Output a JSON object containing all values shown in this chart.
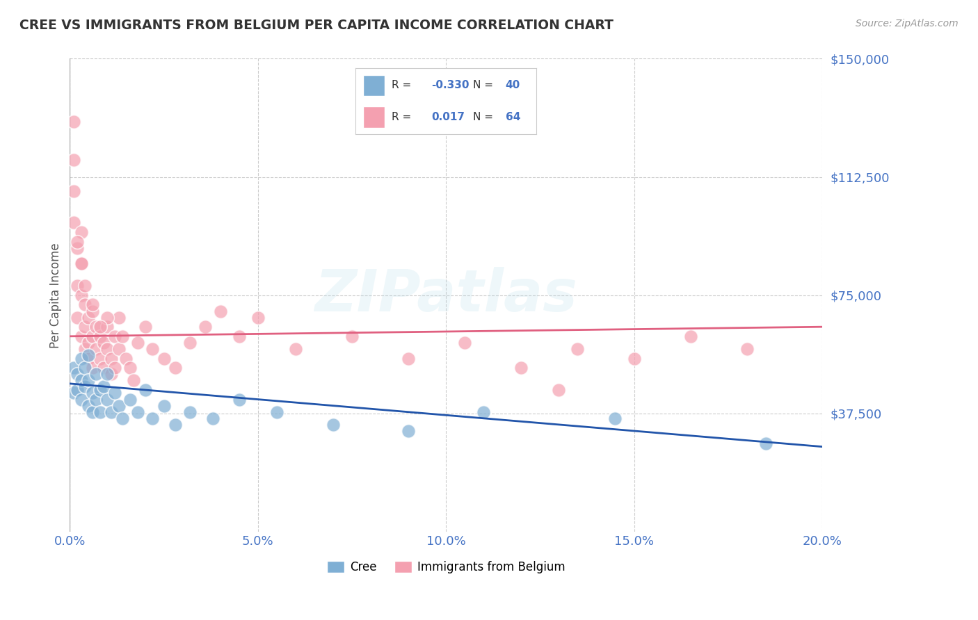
{
  "title": "CREE VS IMMIGRANTS FROM BELGIUM PER CAPITA INCOME CORRELATION CHART",
  "source": "Source: ZipAtlas.com",
  "ylabel": "Per Capita Income",
  "xlim": [
    0.0,
    0.2
  ],
  "ylim": [
    0,
    150000
  ],
  "yticks": [
    0,
    37500,
    75000,
    112500,
    150000
  ],
  "ytick_labels": [
    "",
    "$37,500",
    "$75,000",
    "$112,500",
    "$150,000"
  ],
  "xticks": [
    0.0,
    0.05,
    0.1,
    0.15,
    0.2
  ],
  "xtick_labels": [
    "0.0%",
    "5.0%",
    "10.0%",
    "15.0%",
    "20.0%"
  ],
  "background_color": "#ffffff",
  "grid_color": "#cccccc",
  "title_color": "#333333",
  "axis_label_color": "#555555",
  "tick_label_color": "#4472c4",
  "watermark_text": "ZIPatlas",
  "cree_color": "#7fafd4",
  "belgium_color": "#f4a0b0",
  "cree_line_color": "#2255aa",
  "belgium_line_color": "#e06080",
  "legend_R1": "-0.330",
  "legend_N1": "40",
  "legend_R2": "0.017",
  "legend_N2": "64",
  "cree_line_x0": 0.0,
  "cree_line_y0": 47000,
  "cree_line_x1": 0.2,
  "cree_line_y1": 27000,
  "belgium_line_x0": 0.0,
  "belgium_line_y0": 62000,
  "belgium_line_x1": 0.2,
  "belgium_line_y1": 65000,
  "cree_x": [
    0.001,
    0.001,
    0.002,
    0.002,
    0.003,
    0.003,
    0.003,
    0.004,
    0.004,
    0.005,
    0.005,
    0.005,
    0.006,
    0.006,
    0.007,
    0.007,
    0.008,
    0.008,
    0.009,
    0.01,
    0.01,
    0.011,
    0.012,
    0.013,
    0.014,
    0.016,
    0.018,
    0.02,
    0.022,
    0.025,
    0.028,
    0.032,
    0.038,
    0.045,
    0.055,
    0.07,
    0.09,
    0.11,
    0.145,
    0.185
  ],
  "cree_y": [
    52000,
    44000,
    50000,
    45000,
    48000,
    42000,
    55000,
    46000,
    52000,
    40000,
    48000,
    56000,
    38000,
    44000,
    42000,
    50000,
    45000,
    38000,
    46000,
    42000,
    50000,
    38000,
    44000,
    40000,
    36000,
    42000,
    38000,
    45000,
    36000,
    40000,
    34000,
    38000,
    36000,
    42000,
    38000,
    34000,
    32000,
    38000,
    36000,
    28000
  ],
  "belgium_x": [
    0.001,
    0.001,
    0.001,
    0.001,
    0.002,
    0.002,
    0.002,
    0.003,
    0.003,
    0.003,
    0.003,
    0.004,
    0.004,
    0.004,
    0.005,
    0.005,
    0.005,
    0.006,
    0.006,
    0.006,
    0.007,
    0.007,
    0.008,
    0.008,
    0.009,
    0.009,
    0.01,
    0.01,
    0.011,
    0.011,
    0.012,
    0.012,
    0.013,
    0.013,
    0.014,
    0.015,
    0.016,
    0.017,
    0.018,
    0.02,
    0.022,
    0.025,
    0.028,
    0.032,
    0.036,
    0.04,
    0.045,
    0.05,
    0.06,
    0.075,
    0.09,
    0.105,
    0.12,
    0.135,
    0.15,
    0.165,
    0.18,
    0.01,
    0.008,
    0.006,
    0.004,
    0.003,
    0.002,
    0.13
  ],
  "belgium_y": [
    130000,
    118000,
    108000,
    98000,
    90000,
    78000,
    68000,
    62000,
    75000,
    85000,
    95000,
    72000,
    65000,
    58000,
    60000,
    68000,
    55000,
    70000,
    62000,
    52000,
    65000,
    58000,
    62000,
    55000,
    60000,
    52000,
    58000,
    65000,
    55000,
    50000,
    62000,
    52000,
    58000,
    68000,
    62000,
    55000,
    52000,
    48000,
    60000,
    65000,
    58000,
    55000,
    52000,
    60000,
    65000,
    70000,
    62000,
    68000,
    58000,
    62000,
    55000,
    60000,
    52000,
    58000,
    55000,
    62000,
    58000,
    68000,
    65000,
    72000,
    78000,
    85000,
    92000,
    45000
  ]
}
